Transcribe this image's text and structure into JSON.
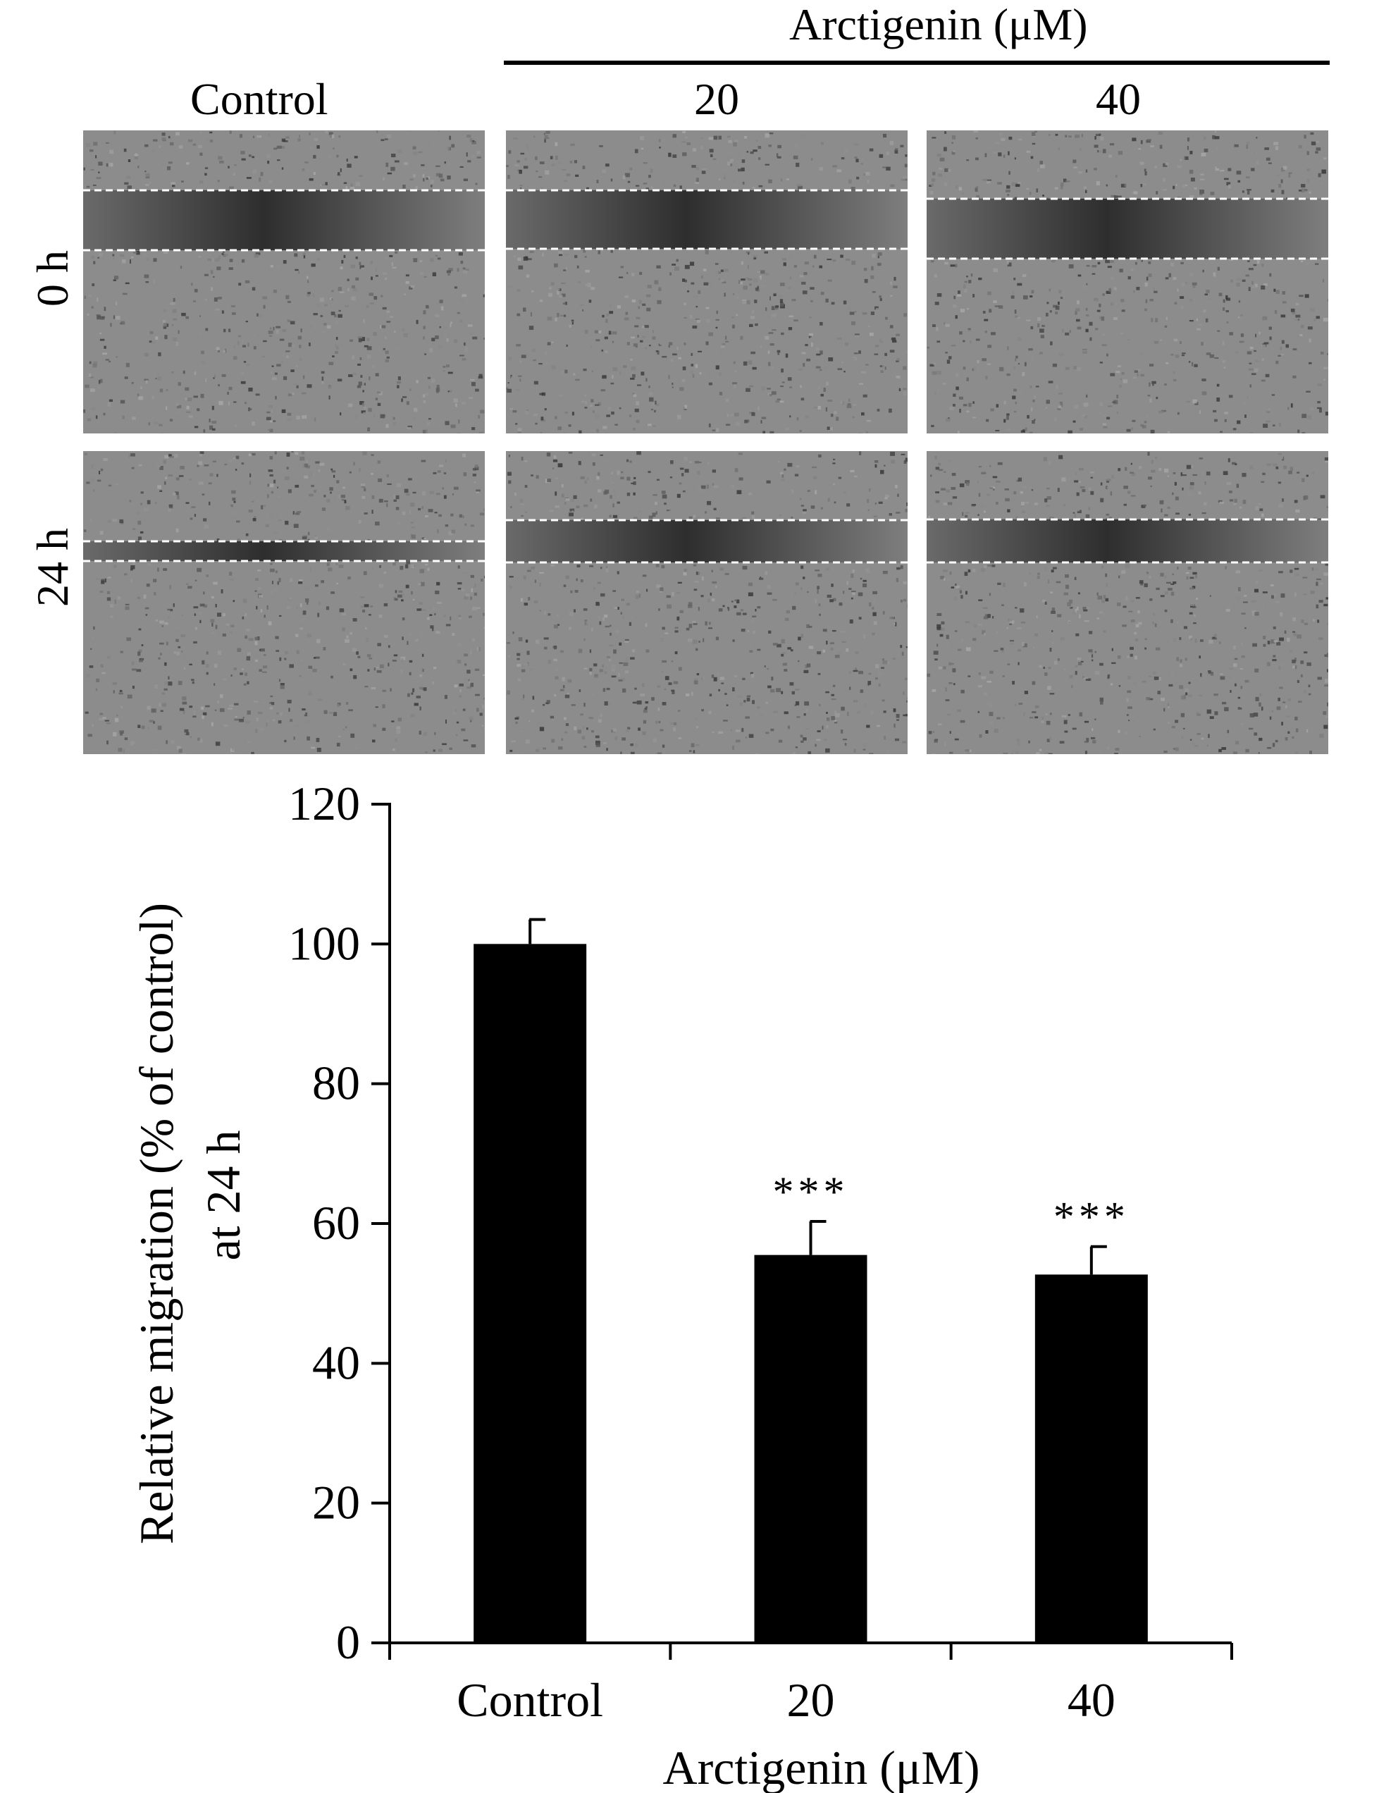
{
  "figure": {
    "treatment_header": "Arctigenin (μM)",
    "columns": [
      "Control",
      "20",
      "40"
    ],
    "rows": [
      "0 h",
      "24 h"
    ]
  },
  "chart_data": {
    "type": "bar",
    "categories": [
      "Control",
      "20",
      "40"
    ],
    "values": [
      100,
      55.5,
      52.7
    ],
    "error_bars": [
      3.5,
      4.8,
      4.0
    ],
    "annotations": [
      "",
      "***",
      "***"
    ],
    "title": "",
    "xlabel": "Arctigenin (μM)",
    "ylabel": "Relative migration (% of control) at 24 h",
    "ylabel_lines": [
      "Relative migration (% of control)",
      "at 24 h"
    ],
    "ylim": [
      0,
      120
    ],
    "yticks": [
      0,
      20,
      40,
      60,
      80,
      100,
      120
    ],
    "bar_color": "#000000",
    "grid": false,
    "legend": "none"
  }
}
